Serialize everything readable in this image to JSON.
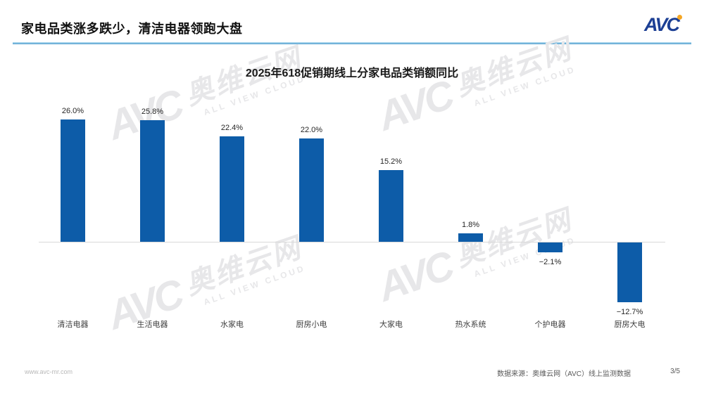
{
  "page": {
    "title": "家电品类涨多跌少，清洁电器领跑大盘",
    "logo_text": "AVC",
    "footer_url": "www.avc-mr.com",
    "footer_source": "数据来源：奥维云网（AVC）线上监测数据",
    "page_number": "3/5"
  },
  "watermark": {
    "logo": "AVC",
    "cn": "奥维云网",
    "en": "ALL VIEW CLOUD"
  },
  "colors": {
    "bar": "#0d5ca8",
    "accent_line": "#4e9bcd",
    "logo_navy": "#1c3f94",
    "logo_orange": "#f5a623",
    "axis_line": "#d9d9d9"
  },
  "chart_data": {
    "type": "bar",
    "title": "2025年618促销期线上分家电品类销额同比",
    "categories": [
      "清洁电器",
      "生活电器",
      "水家电",
      "厨房小电",
      "大家电",
      "热水系统",
      "个护电器",
      "厨房大电"
    ],
    "values": [
      26.0,
      25.8,
      22.4,
      22.0,
      15.2,
      1.8,
      -2.1,
      -12.7
    ],
    "labels": [
      "26.0%",
      "25.8%",
      "22.4%",
      "22.0%",
      "15.2%",
      "1.8%",
      "−2.1%",
      "−12.7%"
    ],
    "unit": "%",
    "ylabel": "",
    "xlabel": "",
    "ylim": [
      -15,
      28
    ],
    "grid": false,
    "legend": null,
    "baseline": 0
  }
}
